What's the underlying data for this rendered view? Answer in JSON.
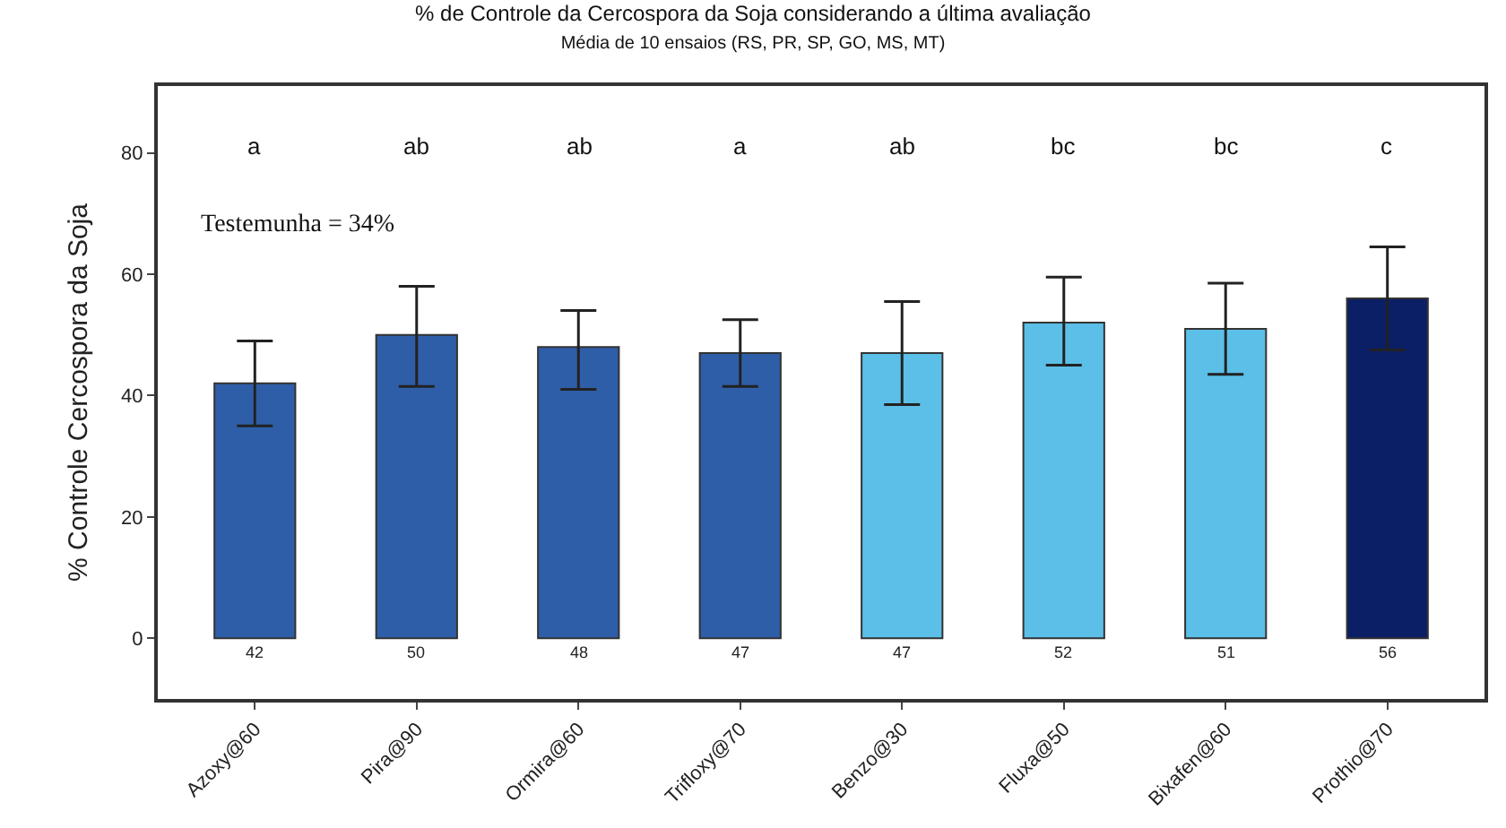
{
  "chart_data": {
    "type": "bar",
    "title": "% de Controle da Cercospora da Soja considerando a última avaliação",
    "subtitle": "Média de 10 ensaios (RS, PR, SP, GO, MS, MT)",
    "ylabel": "% Controle Cercospora da Soja",
    "categories": [
      "Azoxy@60",
      "Pira@90",
      "Ormira@60",
      "Trifloxy@70",
      "Benzo@30",
      "Fluxa@50",
      "Bixafen@60",
      "Prothio@70"
    ],
    "values": [
      42,
      50,
      48,
      47,
      47,
      52,
      51,
      56
    ],
    "colors": [
      "#2f5ea8",
      "#2f5ea8",
      "#2f5ea8",
      "#2f5ea8",
      "#5bbfe8",
      "#5bbfe8",
      "#5bbfe8",
      "#0b1f66"
    ],
    "errors": [
      [
        35,
        49
      ],
      [
        41.5,
        58
      ],
      [
        41,
        54
      ],
      [
        41.5,
        52.5
      ],
      [
        38.5,
        55.5
      ],
      [
        45,
        59.5
      ],
      [
        43.5,
        58.5
      ],
      [
        47.5,
        64.5
      ]
    ],
    "data_labels": true,
    "annotations": [
      "a",
      "ab",
      "ab",
      "a",
      "ab",
      "bc",
      "bc",
      "c",
      "Testemunha = 34%"
    ],
    "ylim": [
      -10,
      91
    ],
    "yticks": [
      0,
      20,
      40,
      60,
      80
    ]
  }
}
